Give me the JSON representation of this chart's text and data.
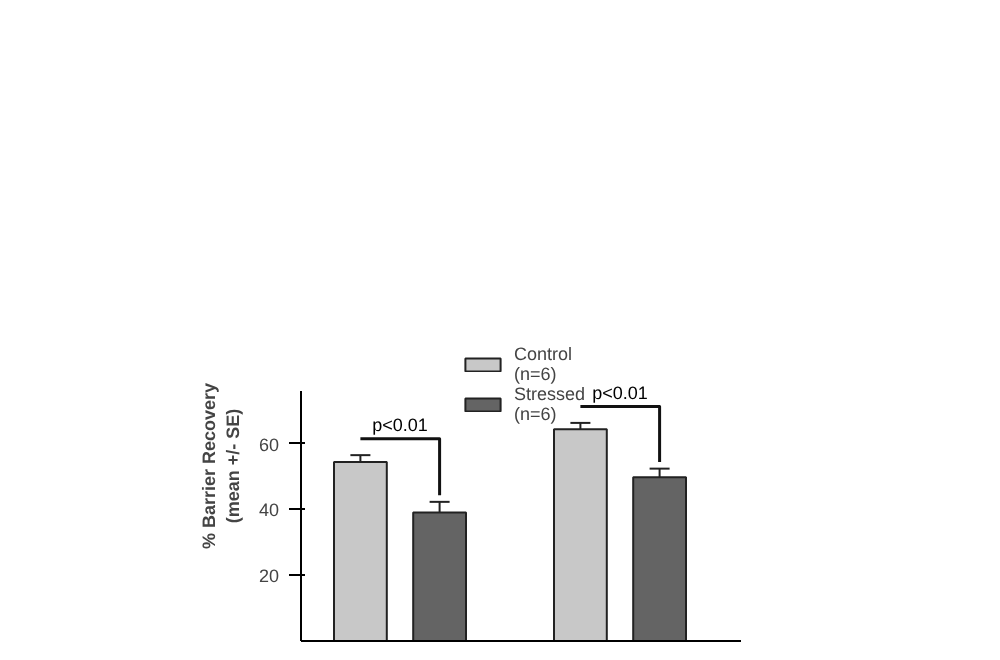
{
  "chart_data": {
    "type": "bar",
    "ylabel": "% Barrier Recovery\n(mean +/- SE)",
    "categories": [
      null,
      null
    ],
    "series": [
      {
        "name": "Control\n(n=6)",
        "color": "#c8c8c8",
        "values": [
          54.4,
          64.4
        ],
        "errors": [
          2.1,
          1.9
        ]
      },
      {
        "name": "Stressed\n(n=6)",
        "color": "#646464",
        "values": [
          39.1,
          49.8
        ],
        "errors": [
          3.2,
          2.6
        ]
      }
    ],
    "ylim": [
      0,
      76
    ],
    "yticks": [
      20,
      40,
      60
    ],
    "grid": false,
    "legend": "top",
    "annotations": [
      "p<0.01",
      "p<0.01"
    ]
  }
}
